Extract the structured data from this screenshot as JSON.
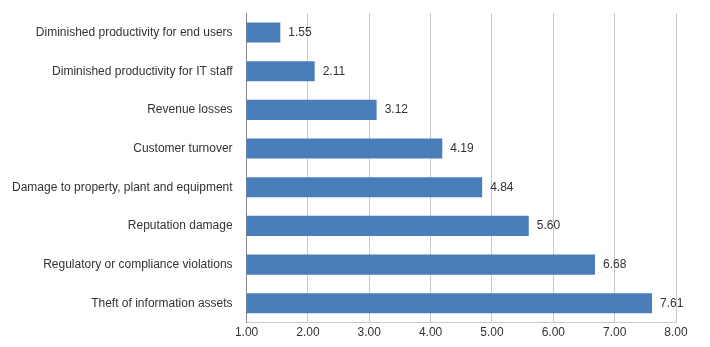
{
  "chart_data": {
    "type": "bar",
    "orientation": "horizontal",
    "categories": [
      "Diminished productivity for end users",
      "Diminished productivity for IT staff",
      "Revenue losses",
      "Customer turnover",
      "Damage to property, plant and equipment",
      "Reputation damage",
      "Regulatory or compliance violations",
      "Theft of information assets"
    ],
    "values": [
      1.55,
      2.11,
      3.12,
      4.19,
      4.84,
      5.6,
      6.68,
      7.61
    ],
    "value_labels": [
      "1.55",
      "2.11",
      "3.12",
      "4.19",
      "4.84",
      "5.60",
      "6.68",
      "7.61"
    ],
    "data_labels": true,
    "color": "#4a7ebb",
    "xlim": [
      1,
      8
    ],
    "xticks": [
      {
        "value": 1,
        "label": "1.00"
      },
      {
        "value": 2,
        "label": "2.00"
      },
      {
        "value": 3,
        "label": "3.00"
      },
      {
        "value": 4,
        "label": "4.00"
      },
      {
        "value": 5,
        "label": "5.00"
      },
      {
        "value": 6,
        "label": "6.00"
      },
      {
        "value": 7,
        "label": "7.00"
      },
      {
        "value": 8,
        "label": "8.00"
      }
    ],
    "grid": true
  }
}
